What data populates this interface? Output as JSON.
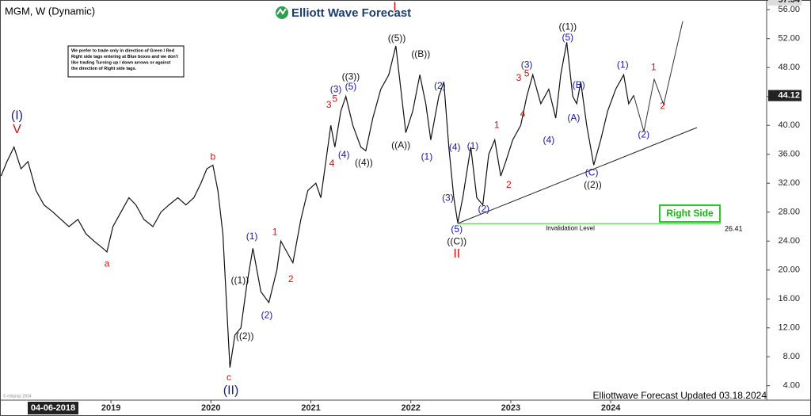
{
  "chart_data": {
    "type": "line",
    "title": "MGM, W (Dynamic)",
    "brand": "Elliott Wave Forecast",
    "footer": "Elliottwave Forecast Updated 03.18.2024",
    "copyright": "© eSignal, 2024",
    "cursor_date": "04-06-2018",
    "color": "#111111",
    "note": [
      "We prefer to trade only in direction of Green / Red",
      "Right side tags entering at Blue boxes and we don't",
      "like trading Turning up / down arrows or against",
      "the direction of Right side tags."
    ],
    "tag": "Right Side",
    "x": [
      2017.9,
      2017.96,
      2018.03,
      2018.1,
      2018.17,
      2018.25,
      2018.33,
      2018.42,
      2018.5,
      2018.58,
      2018.67,
      2018.75,
      2018.83,
      2018.92,
      2018.96,
      2019.02,
      2019.1,
      2019.18,
      2019.25,
      2019.33,
      2019.42,
      2019.5,
      2019.58,
      2019.67,
      2019.75,
      2019.83,
      2019.9,
      2019.96,
      2020.02,
      2020.07,
      2020.12,
      2020.19,
      2020.24,
      2020.3,
      2020.36,
      2020.42,
      2020.5,
      2020.58,
      2020.66,
      2020.7,
      2020.78,
      2020.82,
      2020.9,
      2020.97,
      2021.05,
      2021.1,
      2021.15,
      2021.2,
      2021.24,
      2021.3,
      2021.35,
      2021.42,
      2021.5,
      2021.55,
      2021.62,
      2021.7,
      2021.78,
      2021.85,
      2021.9,
      2021.95,
      2022.02,
      2022.09,
      2022.15,
      2022.2,
      2022.28,
      2022.33,
      2022.38,
      2022.43,
      2022.47,
      2022.52,
      2022.6,
      2022.66,
      2022.72,
      2022.78,
      2022.84,
      2022.9,
      2022.95,
      2023.02,
      2023.1,
      2023.16,
      2023.22,
      2023.3,
      2023.38,
      2023.45,
      2023.5,
      2023.56,
      2023.62,
      2023.66,
      2023.7,
      2023.76,
      2023.83,
      2023.9,
      2023.97,
      2024.05,
      2024.13,
      2024.18,
      2024.23
    ],
    "values": [
      33,
      35,
      37,
      34,
      35,
      31,
      29,
      28,
      27,
      26,
      27,
      25,
      24,
      23,
      22.5,
      26,
      28,
      30,
      29,
      27,
      26,
      28,
      29,
      30,
      29,
      30,
      32,
      34,
      34.5,
      31,
      25,
      6.5,
      11,
      12,
      18,
      23,
      17,
      15.5,
      20,
      24,
      22,
      21,
      27,
      31,
      32,
      30,
      35,
      40,
      37,
      42,
      44,
      40,
      37,
      36.5,
      41,
      45,
      47,
      51,
      45,
      39,
      42,
      47,
      43,
      38,
      44,
      46,
      37,
      30,
      26.5,
      30,
      37,
      30,
      29,
      36,
      38,
      33,
      35,
      38,
      40,
      44,
      47,
      43,
      45,
      41,
      47,
      51.5,
      44,
      43,
      46,
      40,
      34.5,
      38,
      42,
      45,
      47,
      43,
      44.12
    ],
    "xlim": [
      2017.89,
      2025.56
    ],
    "xticks": [
      2019,
      2020,
      2021,
      2022,
      2023,
      2024
    ],
    "ylim": [
      2,
      57.34
    ],
    "yticks": [
      {
        "value": 4,
        "label": "4.00"
      },
      {
        "value": 8,
        "label": "8.00"
      },
      {
        "value": 12,
        "label": "12.00"
      },
      {
        "value": 16,
        "label": "16.00"
      },
      {
        "value": 20,
        "label": "20.00"
      },
      {
        "value": 24,
        "label": "24.00"
      },
      {
        "value": 28,
        "label": "28.00"
      },
      {
        "value": 32,
        "label": "32.00"
      },
      {
        "value": 36,
        "label": "36.00"
      },
      {
        "value": 40,
        "label": "40.00"
      },
      {
        "value": 44,
        "label": "44.00"
      },
      {
        "value": 48,
        "label": "48.00"
      },
      {
        "value": 52,
        "label": "52.00"
      },
      {
        "value": 56,
        "label": "56.00"
      }
    ],
    "last_price": {
      "value": 44.12,
      "label": "44.12"
    },
    "high_label": {
      "value": 57.34,
      "label": "57.34"
    },
    "invalidation": {
      "value": 26.41,
      "label": "26.41",
      "text": "Invalidation Level",
      "color": "#33cc33"
    },
    "annotations": [
      {
        "text": "(I)",
        "at": [
          2018.06,
          41.3
        ],
        "color": "#1a1a9a"
      },
      {
        "text": "V",
        "at": [
          2018.06,
          39.4
        ],
        "color": "#cc1111"
      },
      {
        "text": "a",
        "at": [
          2018.96,
          20.8
        ],
        "color": "#cc1111"
      },
      {
        "text": "b",
        "at": [
          2020.02,
          35.6
        ],
        "color": "#cc1111"
      },
      {
        "text": "c",
        "at": [
          2020.18,
          5.1
        ],
        "color": "#cc1111"
      },
      {
        "text": "(II)",
        "at": [
          2020.2,
          3.3
        ],
        "color": "#1a1a9a"
      },
      {
        "text": "((1))",
        "at": [
          2020.29,
          18.5
        ],
        "color": "#111111"
      },
      {
        "text": "((2))",
        "at": [
          2020.34,
          10.8
        ],
        "color": "#111111"
      },
      {
        "text": "(1)",
        "at": [
          2020.41,
          24.6
        ],
        "color": "#1a1a9a"
      },
      {
        "text": "(2)",
        "at": [
          2020.56,
          13.7
        ],
        "color": "#1a1a9a"
      },
      {
        "text": "1",
        "at": [
          2020.64,
          25.2
        ],
        "color": "#cc1111"
      },
      {
        "text": "2",
        "at": [
          2020.8,
          18.7
        ],
        "color": "#cc1111"
      },
      {
        "text": "3",
        "at": [
          2021.18,
          42.8
        ],
        "color": "#cc1111"
      },
      {
        "text": "5",
        "at": [
          2021.24,
          43.6
        ],
        "color": "#cc1111"
      },
      {
        "text": "4",
        "at": [
          2021.21,
          34.7
        ],
        "color": "#cc1111"
      },
      {
        "text": "(3)",
        "at": [
          2021.25,
          44.9
        ],
        "color": "#1a1a9a"
      },
      {
        "text": "(5)",
        "at": [
          2021.4,
          45.3
        ],
        "color": "#1a1a9a"
      },
      {
        "text": "((3))",
        "at": [
          2021.4,
          46.7
        ],
        "color": "#111111"
      },
      {
        "text": "(4)",
        "at": [
          2021.33,
          35.9
        ],
        "color": "#1a1a9a"
      },
      {
        "text": "((4))",
        "at": [
          2021.53,
          34.8
        ],
        "color": "#111111"
      },
      {
        "text": "((5))",
        "at": [
          2021.86,
          52
        ],
        "color": "#111111"
      },
      {
        "text": "I",
        "at": [
          2021.84,
          56.3
        ],
        "color": "#cc1111"
      },
      {
        "text": "((A))",
        "at": [
          2021.9,
          37.2
        ],
        "color": "#111111"
      },
      {
        "text": "((B))",
        "at": [
          2022.1,
          49.8
        ],
        "color": "#111111"
      },
      {
        "text": "(1)",
        "at": [
          2022.16,
          35.6
        ],
        "color": "#1a1a9a"
      },
      {
        "text": "(2)",
        "at": [
          2022.29,
          45.4
        ],
        "color": "#1a1a9a"
      },
      {
        "text": "(4)",
        "at": [
          2022.44,
          36.9
        ],
        "color": "#1a1a9a"
      },
      {
        "text": "(3)",
        "at": [
          2022.37,
          29.9
        ],
        "color": "#1a1a9a"
      },
      {
        "text": "(5)",
        "at": [
          2022.46,
          25.6
        ],
        "color": "#1a1a9a"
      },
      {
        "text": "((C))",
        "at": [
          2022.46,
          23.9
        ],
        "color": "#111111"
      },
      {
        "text": "II",
        "at": [
          2022.46,
          22.2
        ],
        "color": "#cc1111"
      },
      {
        "text": "(1)",
        "at": [
          2022.62,
          37.1
        ],
        "color": "#1a1a9a"
      },
      {
        "text": "(2)",
        "at": [
          2022.73,
          28.4
        ],
        "color": "#1a1a9a"
      },
      {
        "text": "1",
        "at": [
          2022.86,
          40
        ],
        "color": "#cc1111"
      },
      {
        "text": "2",
        "at": [
          2022.98,
          31.7
        ],
        "color": "#cc1111"
      },
      {
        "text": "3",
        "at": [
          2023.08,
          46.5
        ],
        "color": "#cc1111"
      },
      {
        "text": "5",
        "at": [
          2023.16,
          47.1
        ],
        "color": "#cc1111"
      },
      {
        "text": "(3)",
        "at": [
          2023.16,
          48.3
        ],
        "color": "#1a1a9a"
      },
      {
        "text": "4",
        "at": [
          2023.12,
          41.5
        ],
        "color": "#cc1111"
      },
      {
        "text": "(4)",
        "at": [
          2023.38,
          37.9
        ],
        "color": "#1a1a9a"
      },
      {
        "text": "((1))",
        "at": [
          2023.57,
          53.6
        ],
        "color": "#111111"
      },
      {
        "text": "(5)",
        "at": [
          2023.57,
          52.1
        ],
        "color": "#1a1a9a"
      },
      {
        "text": "(B)",
        "at": [
          2023.68,
          45.5
        ],
        "color": "#1a1a9a"
      },
      {
        "text": "(A)",
        "at": [
          2023.63,
          41
        ],
        "color": "#1a1a9a"
      },
      {
        "text": "(C)",
        "at": [
          2023.81,
          33.4
        ],
        "color": "#1a1a9a"
      },
      {
        "text": "((2))",
        "at": [
          2023.82,
          31.7
        ],
        "color": "#111111"
      },
      {
        "text": "(1)",
        "at": [
          2024.12,
          48.3
        ],
        "color": "#1a1a9a"
      },
      {
        "text": "(2)",
        "at": [
          2024.33,
          38.7
        ],
        "color": "#1a1a9a"
      },
      {
        "text": "1",
        "at": [
          2024.43,
          48
        ],
        "color": "#cc1111"
      },
      {
        "text": "2",
        "at": [
          2024.52,
          42.6
        ],
        "color": "#cc1111"
      }
    ]
  }
}
